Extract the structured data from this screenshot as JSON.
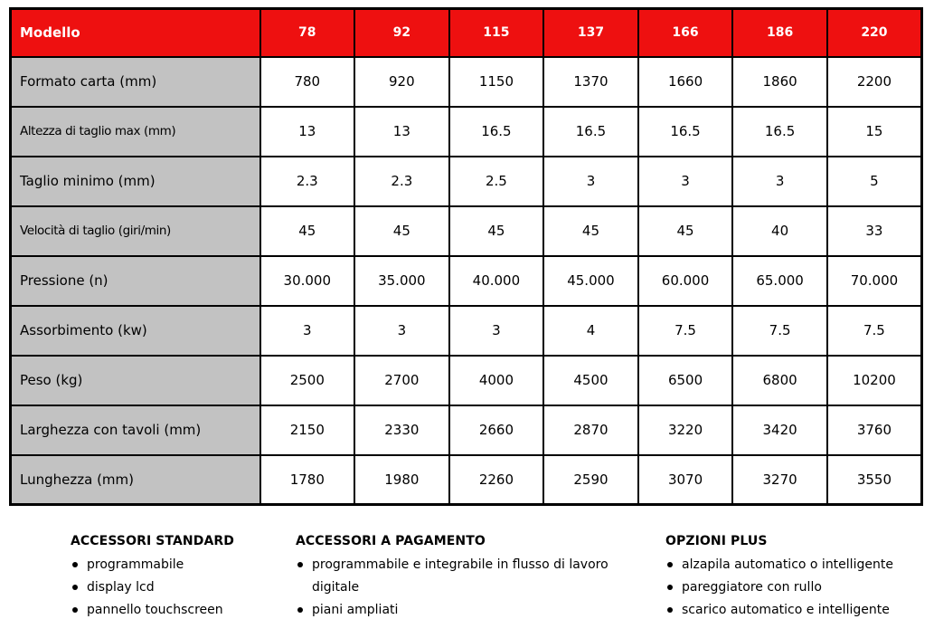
{
  "table": {
    "header": {
      "label": "Modello",
      "models": [
        "78",
        "92",
        "115",
        "137",
        "166",
        "186",
        "220"
      ]
    },
    "rows": [
      {
        "label": "Formato carta (mm)",
        "values": [
          "780",
          "920",
          "1150",
          "1370",
          "1660",
          "1860",
          "2200"
        ]
      },
      {
        "label": "Altezza di taglio max (mm)",
        "values": [
          "13",
          "13",
          "16.5",
          "16.5",
          "16.5",
          "16.5",
          "15"
        ]
      },
      {
        "label": "Taglio minimo (mm)",
        "values": [
          "2.3",
          "2.3",
          "2.5",
          "3",
          "3",
          "3",
          "5"
        ]
      },
      {
        "label": "Velocità di taglio (giri/min)",
        "values": [
          "45",
          "45",
          "45",
          "45",
          "45",
          "40",
          "33"
        ]
      },
      {
        "label": "Pressione (n)",
        "values": [
          "30.000",
          "35.000",
          "40.000",
          "45.000",
          "60.000",
          "65.000",
          "70.000"
        ]
      },
      {
        "label": "Assorbimento (kw)",
        "values": [
          "3",
          "3",
          "3",
          "4",
          "7.5",
          "7.5",
          "7.5"
        ]
      },
      {
        "label": "Peso (kg)",
        "values": [
          "2500",
          "2700",
          "4000",
          "4500",
          "6500",
          "6800",
          "10200"
        ]
      },
      {
        "label": "Larghezza con tavoli (mm)",
        "values": [
          "2150",
          "2330",
          "2660",
          "2870",
          "3220",
          "3420",
          "3760"
        ]
      },
      {
        "label": "Lunghezza (mm)",
        "values": [
          "1780",
          "1980",
          "2260",
          "2590",
          "3070",
          "3270",
          "3550"
        ]
      }
    ]
  },
  "footer": {
    "columns": [
      {
        "title": "ACCESSORI STANDARD",
        "items": [
          "programmabile",
          "display lcd",
          "pannello touchscreen"
        ]
      },
      {
        "title": "ACCESSORI A PAGAMENTO",
        "items": [
          "programmabile e integrabile in flusso di lavoro digitale",
          "piani ampliati"
        ]
      },
      {
        "title": "OPZIONI PLUS",
        "items": [
          "alzapila automatico o intelligente",
          "pareggiatore con rullo",
          "scarico automatico e intelligente"
        ]
      }
    ]
  },
  "colors": {
    "header_bg": "#ee1010",
    "header_text": "#ffffff",
    "label_bg": "#c2c2c2",
    "border": "#000000",
    "cell_bg": "#ffffff"
  }
}
